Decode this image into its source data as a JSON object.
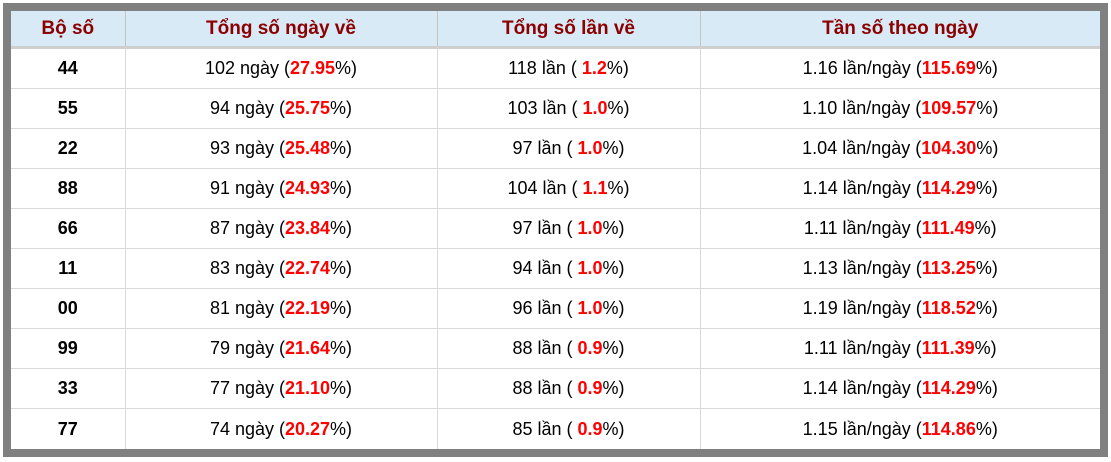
{
  "table": {
    "columns": [
      "Bộ số",
      "Tổng số ngày về",
      "Tổng số lần về",
      "Tần số theo ngày"
    ],
    "rows": [
      {
        "pair": "44",
        "days": {
          "pre": "102 ngày (",
          "value": "27.95",
          "post": "%)"
        },
        "times": {
          "pre": "118 lần ( ",
          "value": "1.2",
          "post": "%)"
        },
        "freq": {
          "pre": "1.16 lần/ngày (",
          "value": "115.69",
          "post": "%)"
        }
      },
      {
        "pair": "55",
        "days": {
          "pre": "94 ngày (",
          "value": "25.75",
          "post": "%)"
        },
        "times": {
          "pre": "103 lần ( ",
          "value": "1.0",
          "post": "%)"
        },
        "freq": {
          "pre": "1.10 lần/ngày (",
          "value": "109.57",
          "post": "%)"
        }
      },
      {
        "pair": "22",
        "days": {
          "pre": "93 ngày (",
          "value": "25.48",
          "post": "%)"
        },
        "times": {
          "pre": "97 lần ( ",
          "value": "1.0",
          "post": "%)"
        },
        "freq": {
          "pre": "1.04 lần/ngày (",
          "value": "104.30",
          "post": "%)"
        }
      },
      {
        "pair": "88",
        "days": {
          "pre": "91 ngày (",
          "value": "24.93",
          "post": "%)"
        },
        "times": {
          "pre": "104 lần ( ",
          "value": "1.1",
          "post": "%)"
        },
        "freq": {
          "pre": "1.14 lần/ngày (",
          "value": "114.29",
          "post": "%)"
        }
      },
      {
        "pair": "66",
        "days": {
          "pre": "87 ngày (",
          "value": "23.84",
          "post": "%)"
        },
        "times": {
          "pre": "97 lần ( ",
          "value": "1.0",
          "post": "%)"
        },
        "freq": {
          "pre": "1.11 lần/ngày (",
          "value": "111.49",
          "post": "%)"
        }
      },
      {
        "pair": "11",
        "days": {
          "pre": "83 ngày (",
          "value": "22.74",
          "post": "%)"
        },
        "times": {
          "pre": "94 lần ( ",
          "value": "1.0",
          "post": "%)"
        },
        "freq": {
          "pre": "1.13 lần/ngày (",
          "value": "113.25",
          "post": "%)"
        }
      },
      {
        "pair": "00",
        "days": {
          "pre": "81 ngày (",
          "value": "22.19",
          "post": "%)"
        },
        "times": {
          "pre": "96 lần ( ",
          "value": "1.0",
          "post": "%)"
        },
        "freq": {
          "pre": "1.19 lần/ngày (",
          "value": "118.52",
          "post": "%)"
        }
      },
      {
        "pair": "99",
        "days": {
          "pre": "79 ngày (",
          "value": "21.64",
          "post": "%)"
        },
        "times": {
          "pre": "88 lần ( ",
          "value": "0.9",
          "post": "%)"
        },
        "freq": {
          "pre": "1.11 lần/ngày (",
          "value": "111.39",
          "post": "%)"
        }
      },
      {
        "pair": "33",
        "days": {
          "pre": "77 ngày (",
          "value": "21.10",
          "post": "%)"
        },
        "times": {
          "pre": "88 lần ( ",
          "value": "0.9",
          "post": "%)"
        },
        "freq": {
          "pre": "1.14 lần/ngày (",
          "value": "114.29",
          "post": "%)"
        }
      },
      {
        "pair": "77",
        "days": {
          "pre": "74 ngày (",
          "value": "20.27",
          "post": "%)"
        },
        "times": {
          "pre": "85 lần ( ",
          "value": "0.9",
          "post": "%)"
        },
        "freq": {
          "pre": "1.15 lần/ngày (",
          "value": "114.86",
          "post": "%)"
        }
      }
    ]
  },
  "colors": {
    "frame_gray": "#808080",
    "header_bg": "#d8eaf5",
    "header_text": "#8b0000",
    "value_red": "#ff0000",
    "body_text": "#000000"
  }
}
